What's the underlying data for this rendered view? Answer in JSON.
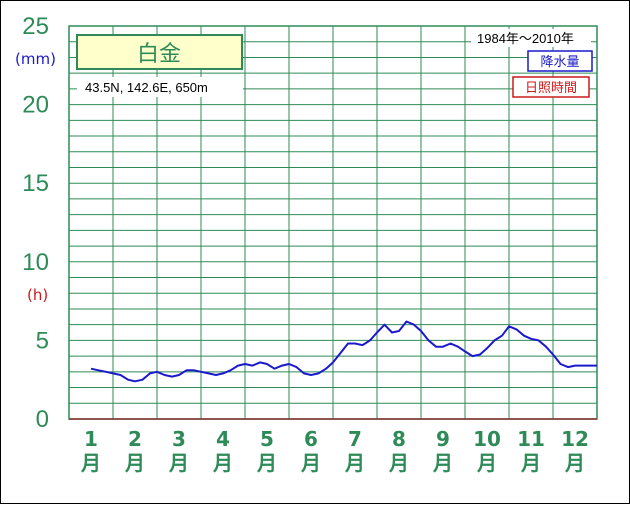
{
  "chart_data": {
    "type": "line",
    "station_name": "白金",
    "location": "43.5N,  142.6E,  650m",
    "period": "1984年〜2010年",
    "unit_left": "(mm)",
    "unit_right": "(h)",
    "y_ticks": [
      "0",
      "5",
      "10",
      "15",
      "20",
      "25"
    ],
    "ylim": [
      0,
      25
    ],
    "grid": true,
    "legend_position": "top-right",
    "categories": [
      "1\n月",
      "2\n月",
      "3\n月",
      "4\n月",
      "5\n月",
      "6\n月",
      "7\n月",
      "8\n月",
      "9\n月",
      "10\n月",
      "11\n月",
      "12\n月"
    ],
    "month_numbers": [
      "1",
      "2",
      "3",
      "4",
      "5",
      "6",
      "7",
      "8",
      "9",
      "10",
      "11",
      "12"
    ],
    "month_suffix": "月",
    "series": [
      {
        "name": "降水量",
        "color": "#1a1acc",
        "x": [
          1,
          1.17,
          1.34,
          1.5,
          1.67,
          1.84,
          2.0,
          2.17,
          2.34,
          2.5,
          2.67,
          2.84,
          3.0,
          3.17,
          3.34,
          3.5,
          3.67,
          3.84,
          4.0,
          4.17,
          4.34,
          4.5,
          4.67,
          4.84,
          5.0,
          5.17,
          5.34,
          5.5,
          5.67,
          5.84,
          6.0,
          6.17,
          6.34,
          6.5,
          6.67,
          6.84,
          7.0,
          7.17,
          7.34,
          7.5,
          7.67,
          7.84,
          8.0,
          8.17,
          8.34,
          8.5,
          8.67,
          8.84,
          9.0,
          9.17,
          9.34,
          9.5,
          9.67,
          9.84,
          10.0,
          10.17,
          10.34,
          10.5,
          10.67,
          10.84,
          11.0,
          11.17,
          11.34,
          11.5,
          11.67,
          11.84,
          12.0,
          12.17,
          12.34,
          12.5
        ],
        "values": [
          3.2,
          3.1,
          3.0,
          2.9,
          2.8,
          2.5,
          2.4,
          2.5,
          2.9,
          3.0,
          2.8,
          2.7,
          2.8,
          3.1,
          3.1,
          3.0,
          2.9,
          2.8,
          2.9,
          3.1,
          3.4,
          3.5,
          3.4,
          3.6,
          3.5,
          3.2,
          3.4,
          3.5,
          3.3,
          2.9,
          2.8,
          2.9,
          3.2,
          3.6,
          4.2,
          4.8,
          4.8,
          4.7,
          5.0,
          5.5,
          6.0,
          5.5,
          5.6,
          6.2,
          6.0,
          5.6,
          5.0,
          4.6,
          4.6,
          4.8,
          4.6,
          4.3,
          4.0,
          4.1,
          4.5,
          5.0,
          5.3,
          5.9,
          5.7,
          5.3,
          5.1,
          5.0,
          4.6,
          4.1,
          3.5,
          3.3,
          3.4,
          3.4,
          3.4,
          3.4
        ]
      },
      {
        "name": "日照時間",
        "color": "#cc1a1a",
        "x": [],
        "values": []
      }
    ]
  }
}
